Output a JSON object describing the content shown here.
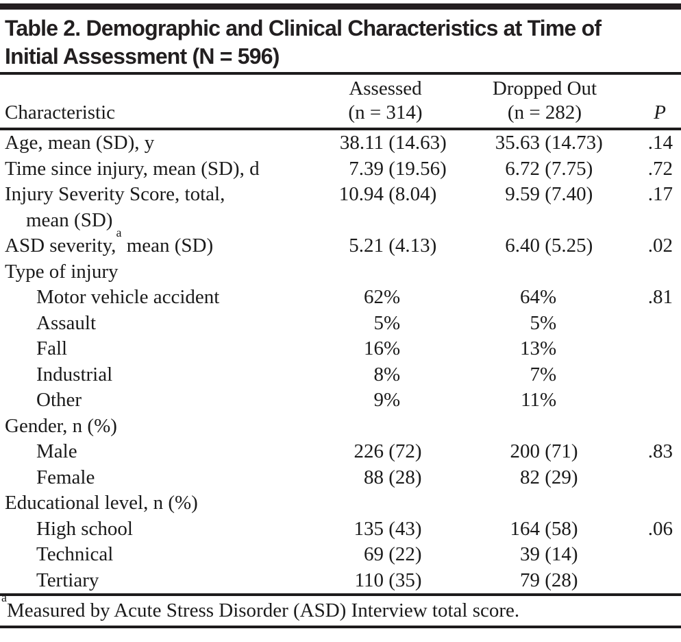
{
  "colors": {
    "background": "#ffffff",
    "text": "#1a1a1a",
    "rule": "#1d1b1c"
  },
  "table": {
    "title_line1": "Table 2. Demographic and Clinical Characteristics at Time of",
    "title_line2": "Initial Assessment (N = 596)",
    "columns": {
      "characteristic": "Characteristic",
      "assessed_line1": "Assessed",
      "assessed_line2": "(n = 314)",
      "dropped_line1": "Dropped Out",
      "dropped_line2": "(n = 282)",
      "p": "P"
    },
    "rows": [
      {
        "label": "Age, mean (SD), y",
        "a_num": "38.11",
        "a_rest": " (14.63)",
        "d_num": "35.63",
        "d_rest": " (14.73)",
        "p": ".14"
      },
      {
        "label": "Time since injury, mean (SD), d",
        "a_num": "7.39",
        "a_rest": " (19.56)",
        "d_num": "6.72",
        "d_rest": " (7.75)",
        "p": ".72"
      },
      {
        "label": "Injury Severity Score, total,",
        "label2": "mean (SD)",
        "a_num": "10.94",
        "a_rest": " (8.04)",
        "d_num": "9.59",
        "d_rest": " (7.40)",
        "p": ".17"
      },
      {
        "label_pre": "ASD severity,",
        "label_sup": "a",
        "label_post": " mean (SD)",
        "a_num": "5.21",
        "a_rest": " (4.13)",
        "d_num": "6.40",
        "d_rest": " (5.25)",
        "p": ".02"
      },
      {
        "label": "Type of injury"
      },
      {
        "label": "Motor vehicle accident",
        "a_num": "62",
        "a_rest": "%",
        "d_num": "64",
        "d_rest": "%",
        "p": ".81"
      },
      {
        "label": "Assault",
        "a_num": "5",
        "a_rest": "%",
        "d_num": "5",
        "d_rest": "%"
      },
      {
        "label": "Fall",
        "a_num": "16",
        "a_rest": "%",
        "d_num": "13",
        "d_rest": "%"
      },
      {
        "label": "Industrial",
        "a_num": "8",
        "a_rest": "%",
        "d_num": "7",
        "d_rest": "%"
      },
      {
        "label": "Other",
        "a_num": "9",
        "a_rest": "%",
        "d_num": "11",
        "d_rest": "%"
      },
      {
        "label": "Gender, n (%)"
      },
      {
        "label": "Male",
        "a_num": "226",
        "a_rest": " (72)",
        "d_num": "200",
        "d_rest": " (71)",
        "p": ".83"
      },
      {
        "label": "Female",
        "a_num": "88",
        "a_rest": " (28)",
        "d_num": "82",
        "d_rest": " (29)"
      },
      {
        "label": "Educational level, n (%)"
      },
      {
        "label": "High school",
        "a_num": "135",
        "a_rest": " (43)",
        "d_num": "164",
        "d_rest": " (58)",
        "p": ".06"
      },
      {
        "label": "Technical",
        "a_num": "69",
        "a_rest": " (22)",
        "d_num": "39",
        "d_rest": " (14)"
      },
      {
        "label": "Tertiary",
        "a_num": "110",
        "a_rest": " (35)",
        "d_num": "79",
        "d_rest": " (28)"
      }
    ],
    "footnote": {
      "sup": "a",
      "text": "Measured by Acute Stress Disorder (ASD) Interview total score."
    }
  }
}
